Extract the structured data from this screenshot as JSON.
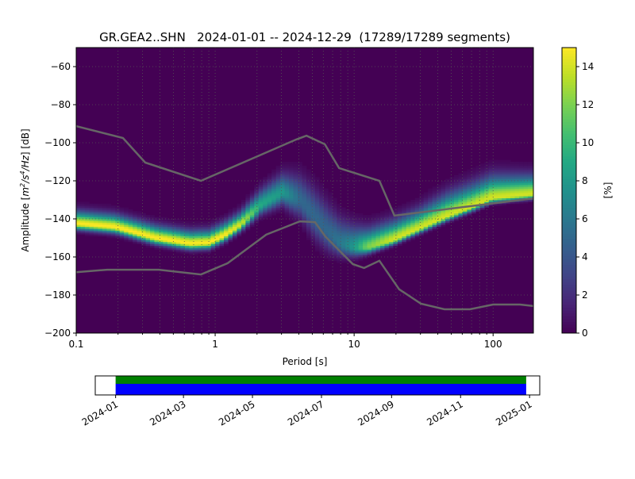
{
  "chart_data": [
    {
      "type": "heatmap",
      "title": "GR.GEA2..SHN   2024-01-01 -- 2024-12-29  (17289/17289 segments)",
      "xlabel": "Period [s]",
      "ylabel": "Amplitude [m²/s⁴/Hz] [dB]",
      "ylabel_parts": {
        "pre": "Amplitude [",
        "m": "m",
        "sup2": "2",
        "s": "/s",
        "sup4": "4",
        "hz": "/Hz",
        "post": "] [dB]"
      },
      "x_scale": "log",
      "xlim": [
        0.1,
        195
      ],
      "ylim": [
        -200,
        -50
      ],
      "x_ticks": [
        0.1,
        1,
        10,
        100
      ],
      "x_tick_labels": [
        "0.1",
        "1",
        "10",
        "100"
      ],
      "y_ticks": [
        -200,
        -180,
        -160,
        -140,
        -120,
        -100,
        -80,
        -60
      ],
      "y_tick_labels": [
        "−200",
        "−180",
        "−160",
        "−140",
        "−120",
        "−100",
        "−80",
        "−60"
      ],
      "grid": true,
      "colormap": "viridis",
      "colorbar": {
        "label": "[%]",
        "range": [
          0,
          15
        ],
        "ticks": [
          0,
          2,
          4,
          6,
          8,
          10,
          12,
          14
        ],
        "tick_labels": [
          "0",
          "2",
          "4",
          "6",
          "8",
          "10",
          "12",
          "14"
        ]
      },
      "density": {
        "period_s": [
          0.1,
          0.19,
          0.37,
          0.66,
          0.9,
          1.17,
          1.53,
          2.15,
          3.06,
          4.13,
          5.2,
          6.5,
          8,
          10,
          12.5,
          19.3,
          29.6,
          46.4,
          72,
          98,
          195
        ],
        "mode_db": [
          -142.4,
          -144.2,
          -150,
          -152.9,
          -152.5,
          -148.6,
          -143,
          -132.5,
          -126,
          -130,
          -138.7,
          -147,
          -153,
          -155,
          -155,
          -151,
          -145,
          -138.7,
          -133.3,
          -129,
          -127
        ],
        "peak_pct": [
          15,
          15,
          15,
          15,
          15,
          15,
          14,
          9,
          8,
          5,
          5,
          5,
          6,
          8,
          12,
          14,
          14,
          14,
          14,
          14,
          14
        ],
        "spread_up_db": [
          4,
          4,
          4,
          4,
          4,
          4,
          4,
          5,
          6,
          8,
          9,
          9,
          8,
          7,
          6,
          6,
          6,
          7,
          7,
          7,
          6
        ],
        "spread_down_db": [
          2,
          2,
          2,
          2,
          2,
          2,
          2,
          3,
          4,
          6,
          7,
          6,
          4,
          3,
          2,
          1.5,
          1.5,
          1.5,
          1.5,
          1.5,
          1.5
        ]
      },
      "noise_models": [
        {
          "color": "#666666",
          "points": [
            [
              0.1,
              -91.3
            ],
            [
              0.217,
              -97.5
            ],
            [
              0.314,
              -110.4
            ],
            [
              0.79,
              -120
            ],
            [
              3.83,
              -98.3
            ],
            [
              4.54,
              -96.3
            ],
            [
              6.15,
              -100.8
            ],
            [
              7.79,
              -113.3
            ],
            [
              15.2,
              -120
            ],
            [
              19.5,
              -138.3
            ],
            [
              195,
              -129.2
            ]
          ]
        },
        {
          "color": "#666666",
          "points": [
            [
              0.1,
              -168
            ],
            [
              0.167,
              -166.7
            ],
            [
              0.393,
              -166.7
            ],
            [
              0.79,
              -169.2
            ],
            [
              1.23,
              -163.3
            ],
            [
              2.33,
              -148.3
            ],
            [
              4.07,
              -141.3
            ],
            [
              5.23,
              -141.7
            ],
            [
              6.2,
              -149.2
            ],
            [
              9.8,
              -163.8
            ],
            [
              11.8,
              -165.8
            ],
            [
              15.2,
              -162
            ],
            [
              21.1,
              -177
            ],
            [
              30.3,
              -184.6
            ],
            [
              44.7,
              -187.5
            ],
            [
              68.1,
              -187.5
            ],
            [
              100,
              -185
            ],
            [
              156,
              -185
            ],
            [
              195,
              -185.8
            ]
          ]
        }
      ]
    },
    {
      "type": "bar",
      "title": "",
      "x_tick_labels": [
        "2024-01",
        "2024-03",
        "2024-05",
        "2024-07",
        "2024-09",
        "2024-11",
        "2025-01"
      ],
      "x_ticks": [
        "2024-01-01",
        "2024-03-01",
        "2024-05-01",
        "2024-07-01",
        "2024-09-01",
        "2024-11-01",
        "2025-01-01"
      ],
      "xlim": [
        "2023-12-14",
        "2025-01-10"
      ],
      "series": [
        {
          "color": "#008000",
          "start": "2024-01-01",
          "end": "2024-12-29"
        },
        {
          "color": "#0000ff",
          "start": "2024-01-01",
          "end": "2024-12-29"
        }
      ]
    }
  ]
}
